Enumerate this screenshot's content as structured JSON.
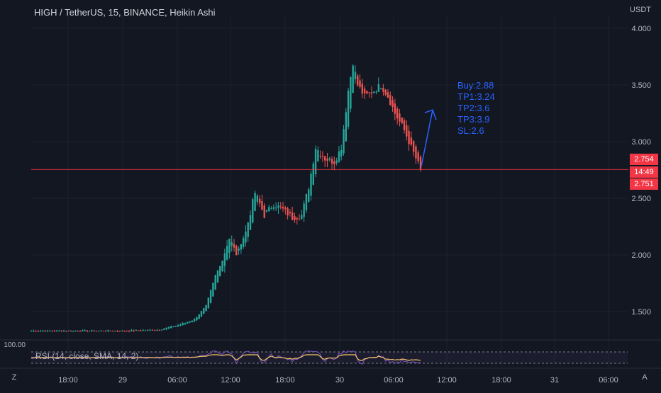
{
  "header": {
    "ticker": "HIGH / TetherUS, 15, BINANCE, Heikin Ashi"
  },
  "price_axis": {
    "unit": "USDT"
  },
  "trade_plan": {
    "lines": [
      "Buy:2.88",
      "TP1:3.24",
      "TP2:3.6",
      "TP3:3.9",
      "SL:2.6"
    ]
  },
  "last_price": {
    "price_top": "2.754",
    "countdown": "14:49",
    "price_bottom": "2.751"
  },
  "rsi": {
    "label": "RSI (14, close, SMA, 14, 2)",
    "axis_label": "100.00"
  },
  "buttons": {
    "left": "Z",
    "right": "A"
  },
  "colors": {
    "background": "#131722",
    "up": "#26a69a",
    "down": "#ef5350",
    "grid": "#1e222d",
    "annotation": "#2962ff",
    "rsi_line": "#7e57c2",
    "rsi_ma": "#f7c56b",
    "last_price": "#f23645"
  },
  "chart_data": {
    "type": "candlestick",
    "title": "HIGH / TetherUS, 15, BINANCE, Heikin Ashi",
    "y_ticks": [
      "4.000",
      "3.500",
      "3.000",
      "2.500",
      "2.000",
      "1.500"
    ],
    "ylim": [
      1.0,
      4.2
    ],
    "x_ticks": [
      "18:00",
      "29",
      "06:00",
      "12:00",
      "18:00",
      "30",
      "06:00",
      "12:00",
      "18:00",
      "31",
      "06:00"
    ],
    "last_price": 2.754,
    "arrow": {
      "from_price": 2.78,
      "to_price": 3.28
    },
    "anchors": [
      {
        "i": 0,
        "p": 1.33
      },
      {
        "i": 20,
        "p": 1.33
      },
      {
        "i": 40,
        "p": 1.33
      },
      {
        "i": 55,
        "p": 1.34
      },
      {
        "i": 63,
        "p": 1.38
      },
      {
        "i": 70,
        "p": 1.43
      },
      {
        "i": 75,
        "p": 1.55
      },
      {
        "i": 79,
        "p": 1.82
      },
      {
        "i": 82,
        "p": 1.95
      },
      {
        "i": 85,
        "p": 2.15
      },
      {
        "i": 88,
        "p": 2.0
      },
      {
        "i": 92,
        "p": 2.2
      },
      {
        "i": 96,
        "p": 2.55
      },
      {
        "i": 100,
        "p": 2.35
      },
      {
        "i": 104,
        "p": 2.45
      },
      {
        "i": 108,
        "p": 2.4
      },
      {
        "i": 112,
        "p": 2.33
      },
      {
        "i": 116,
        "p": 2.35
      },
      {
        "i": 119,
        "p": 2.6
      },
      {
        "i": 122,
        "p": 2.95
      },
      {
        "i": 126,
        "p": 2.85
      },
      {
        "i": 130,
        "p": 2.82
      },
      {
        "i": 133,
        "p": 2.95
      },
      {
        "i": 136,
        "p": 3.45
      },
      {
        "i": 138,
        "p": 3.7
      },
      {
        "i": 140,
        "p": 3.5
      },
      {
        "i": 143,
        "p": 3.4
      },
      {
        "i": 147,
        "p": 3.45
      },
      {
        "i": 150,
        "p": 3.5
      },
      {
        "i": 153,
        "p": 3.4
      },
      {
        "i": 156,
        "p": 3.25
      },
      {
        "i": 160,
        "p": 3.1
      },
      {
        "i": 164,
        "p": 2.9
      },
      {
        "i": 167,
        "p": 2.754
      }
    ]
  }
}
